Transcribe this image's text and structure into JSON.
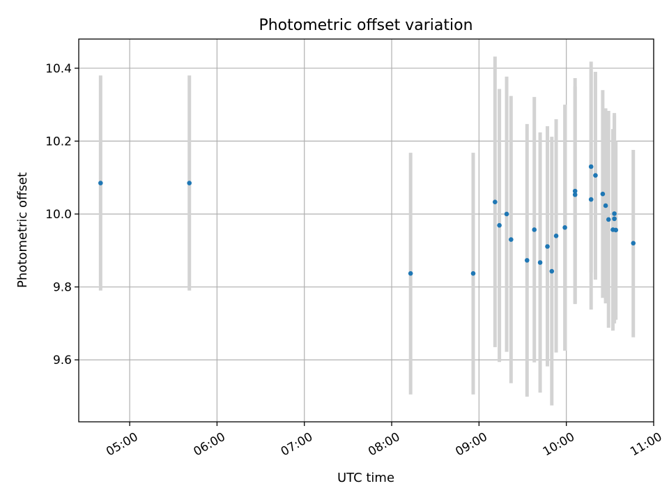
{
  "chart_data": {
    "type": "scatter",
    "title": "Photometric offset variation",
    "xlabel": "UTC time",
    "ylabel": "Photometric offset",
    "x_axis": "time (UTC, HH:MM)",
    "xlim": [
      "04:25",
      "11:00"
    ],
    "ylim": [
      9.43,
      10.48
    ],
    "x_ticks": [
      "05:00",
      "06:00",
      "07:00",
      "08:00",
      "09:00",
      "10:00",
      "11:00"
    ],
    "y_ticks": [
      "9.6",
      "9.8",
      "10.0",
      "10.2",
      "10.4"
    ],
    "grid": true,
    "legend": "none",
    "colors": {
      "point": "#1f77b4",
      "error_bar": "#d3d3d3"
    },
    "series": [
      {
        "points": [
          {
            "t": "04:40",
            "y": 10.085,
            "lo": 9.79,
            "hi": 10.38
          },
          {
            "t": "05:41",
            "y": 10.085,
            "lo": 9.79,
            "hi": 10.38
          },
          {
            "t": "08:13",
            "y": 9.837,
            "lo": 9.505,
            "hi": 10.168
          },
          {
            "t": "08:56",
            "y": 9.837,
            "lo": 9.505,
            "hi": 10.168
          },
          {
            "t": "09:11",
            "y": 10.033,
            "lo": 9.635,
            "hi": 10.432
          },
          {
            "t": "09:14",
            "y": 9.969,
            "lo": 9.594,
            "hi": 10.343
          },
          {
            "t": "09:19",
            "y": 10.0,
            "lo": 9.622,
            "hi": 10.377
          },
          {
            "t": "09:22",
            "y": 9.93,
            "lo": 9.536,
            "hi": 10.324
          },
          {
            "t": "09:33",
            "y": 9.873,
            "lo": 9.499,
            "hi": 10.247
          },
          {
            "t": "09:38",
            "y": 9.957,
            "lo": 9.593,
            "hi": 10.321
          },
          {
            "t": "09:42",
            "y": 9.867,
            "lo": 9.51,
            "hi": 10.224
          },
          {
            "t": "09:47",
            "y": 9.911,
            "lo": 9.582,
            "hi": 10.241
          },
          {
            "t": "09:50",
            "y": 9.843,
            "lo": 9.475,
            "hi": 10.212
          },
          {
            "t": "09:53",
            "y": 9.94,
            "lo": 9.62,
            "hi": 10.26
          },
          {
            "t": "09:59",
            "y": 9.963,
            "lo": 9.625,
            "hi": 10.3
          },
          {
            "t": "10:06",
            "y": 10.063,
            "lo": 9.753,
            "hi": 10.373
          },
          {
            "t": "10:06",
            "y": 10.053,
            "lo": 9.755,
            "hi": 10.35
          },
          {
            "t": "10:17",
            "y": 10.04,
            "lo": 9.738,
            "hi": 10.418
          },
          {
            "t": "10:17",
            "y": 10.13,
            "lo": 9.84,
            "hi": 10.395
          },
          {
            "t": "10:20",
            "y": 10.106,
            "lo": 9.82,
            "hi": 10.39
          },
          {
            "t": "10:25",
            "y": 10.055,
            "lo": 9.77,
            "hi": 10.34
          },
          {
            "t": "10:27",
            "y": 10.023,
            "lo": 9.755,
            "hi": 10.29
          },
          {
            "t": "10:29",
            "y": 9.985,
            "lo": 9.688,
            "hi": 10.283
          },
          {
            "t": "10:32",
            "y": 9.957,
            "lo": 9.68,
            "hi": 10.233
          },
          {
            "t": "10:33",
            "y": 9.987,
            "lo": 9.7,
            "hi": 10.277
          },
          {
            "t": "10:33",
            "y": 10.001,
            "lo": 9.72,
            "hi": 10.27
          },
          {
            "t": "10:34",
            "y": 9.956,
            "lo": 9.71,
            "hi": 10.2
          },
          {
            "t": "10:46",
            "y": 9.92,
            "lo": 9.662,
            "hi": 10.176
          }
        ]
      }
    ]
  }
}
